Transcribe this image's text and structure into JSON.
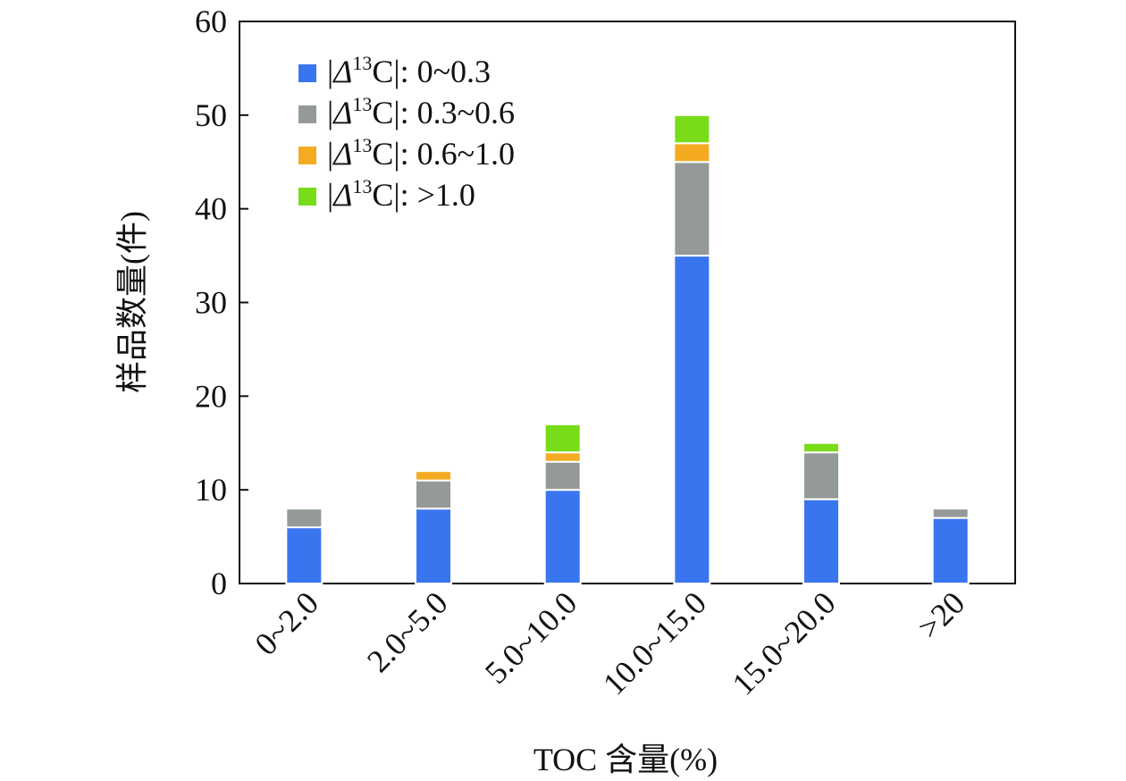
{
  "chart_data": {
    "type": "bar",
    "stacked": true,
    "categories": [
      "0~2.0",
      "2.0~5.0",
      "5.0~10.0",
      "10.0~15.0",
      "15.0~20.0",
      ">20"
    ],
    "series": [
      {
        "name": "|Δ13C|: 0~0.3",
        "legend": {
          "pre": "|",
          "delta": "Δ",
          "sup": "13",
          "post": "C|: 0~0.3"
        },
        "color": "#3a75f0",
        "values": [
          6,
          8,
          10,
          35,
          9,
          7
        ]
      },
      {
        "name": "|Δ13C|: 0.3~0.6",
        "legend": {
          "pre": "|",
          "delta": "Δ",
          "sup": "13",
          "post": "C|: 0.3~0.6"
        },
        "color": "#949a99",
        "values": [
          2,
          3,
          3,
          10,
          5,
          1
        ]
      },
      {
        "name": "|Δ13C|: 0.6~1.0",
        "legend": {
          "pre": "|",
          "delta": "Δ",
          "sup": "13",
          "post": "C|: 0.6~1.0"
        },
        "color": "#f4ab22",
        "values": [
          0,
          1,
          1,
          2,
          0,
          0
        ]
      },
      {
        "name": "|Δ13C|: >1.0",
        "legend": {
          "pre": "|",
          "delta": "Δ",
          "sup": "13",
          "post": "C|: >1.0"
        },
        "color": "#78dc18",
        "values": [
          0,
          0,
          3,
          3,
          1,
          0
        ]
      }
    ],
    "xlabel": "TOC 含量(%)",
    "ylabel": "样品数量(件)",
    "ylim": [
      0,
      60
    ],
    "yticks": [
      0,
      10,
      20,
      30,
      40,
      50,
      60
    ],
    "grid": false,
    "legend_position": "top-left"
  }
}
